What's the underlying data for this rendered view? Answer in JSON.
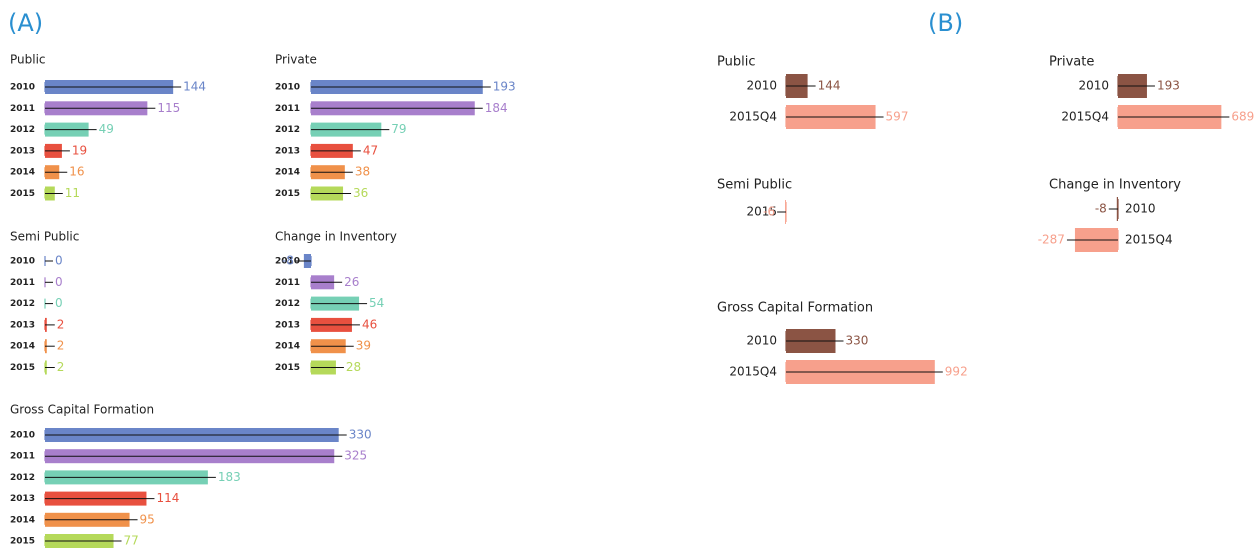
{
  "panels": [
    {
      "label": "(A)"
    },
    {
      "label": "(B)"
    }
  ],
  "chart_data": [
    {
      "type": "bar",
      "title": "Public",
      "categories": [
        "2010",
        "2011",
        "2012",
        "2013",
        "2014",
        "2015"
      ],
      "values": [
        144,
        115,
        49,
        19,
        16,
        11
      ],
      "colors": [
        "#6a85c8",
        "#a87fcc",
        "#76d0b5",
        "#e8503f",
        "#f0914a",
        "#b5d95a"
      ]
    },
    {
      "type": "bar",
      "title": "Private",
      "categories": [
        "2010",
        "2011",
        "2012",
        "2013",
        "2014",
        "2015"
      ],
      "values": [
        193,
        184,
        79,
        47,
        38,
        36
      ],
      "colors": [
        "#6a85c8",
        "#a87fcc",
        "#76d0b5",
        "#e8503f",
        "#f0914a",
        "#b5d95a"
      ]
    },
    {
      "type": "bar",
      "title": "Semi Public",
      "categories": [
        "2010",
        "2011",
        "2012",
        "2013",
        "2014",
        "2015"
      ],
      "values": [
        0,
        0,
        0,
        2,
        2,
        2
      ],
      "colors": [
        "#6a85c8",
        "#a87fcc",
        "#76d0b5",
        "#e8503f",
        "#f0914a",
        "#b5d95a"
      ]
    },
    {
      "type": "bar",
      "title": "Change in Inventory",
      "categories": [
        "2010",
        "2011",
        "2012",
        "2013",
        "2014",
        "2015"
      ],
      "values": [
        -8,
        26,
        54,
        46,
        39,
        28
      ],
      "colors": [
        "#6a85c8",
        "#a87fcc",
        "#76d0b5",
        "#e8503f",
        "#f0914a",
        "#b5d95a"
      ]
    },
    {
      "type": "bar",
      "title": "Gross Capital Formation",
      "categories": [
        "2010",
        "2011",
        "2012",
        "2013",
        "2014",
        "2015"
      ],
      "values": [
        330,
        325,
        183,
        114,
        95,
        77
      ],
      "colors": [
        "#6a85c8",
        "#a87fcc",
        "#76d0b5",
        "#e8503f",
        "#f0914a",
        "#b5d95a"
      ]
    },
    {
      "type": "bar",
      "title": "Public",
      "categories": [
        "2010",
        "2015Q4"
      ],
      "values": [
        144,
        597
      ],
      "colors": [
        "#8b5444",
        "#f7a08c"
      ]
    },
    {
      "type": "bar",
      "title": "Private",
      "categories": [
        "2010",
        "2015Q4"
      ],
      "values": [
        193,
        689
      ],
      "colors": [
        "#8b5444",
        "#f7a08c"
      ]
    },
    {
      "type": "bar",
      "title": "Semi Public",
      "categories": [
        "2015"
      ],
      "values": [
        -6
      ],
      "colors": [
        "#f7a08c"
      ]
    },
    {
      "type": "bar",
      "title": "Change in Inventory",
      "categories": [
        "2010",
        "2015Q4"
      ],
      "values": [
        -8,
        -287
      ],
      "colors": [
        "#8b5444",
        "#f7a08c"
      ]
    },
    {
      "type": "bar",
      "title": "Gross Capital Formation",
      "categories": [
        "2010",
        "2015Q4"
      ],
      "values": [
        330,
        992
      ],
      "colors": [
        "#8b5444",
        "#f7a08c"
      ]
    }
  ]
}
